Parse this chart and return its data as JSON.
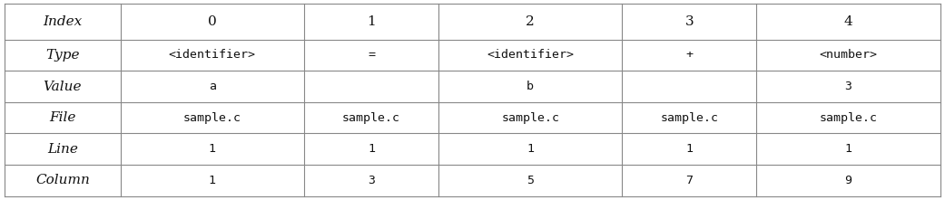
{
  "col_labels": [
    "Index",
    "0",
    "1",
    "2",
    "3",
    "4"
  ],
  "row_labels": [
    "Type",
    "Value",
    "File",
    "Line",
    "Column"
  ],
  "table_data": [
    [
      "<identifier>",
      "=",
      "<identifier>",
      "+",
      "<number>"
    ],
    [
      "a",
      "",
      "b",
      "",
      "3"
    ],
    [
      "sample.c",
      "sample.c",
      "sample.c",
      "sample.c",
      "sample.c"
    ],
    [
      "1",
      "1",
      "1",
      "1",
      "1"
    ],
    [
      "1",
      "3",
      "5",
      "7",
      "9"
    ]
  ],
  "background_color": "#ffffff",
  "line_color": "#888888",
  "text_color": "#111111",
  "figsize": [
    10.41,
    2.21
  ],
  "dpi": 100
}
